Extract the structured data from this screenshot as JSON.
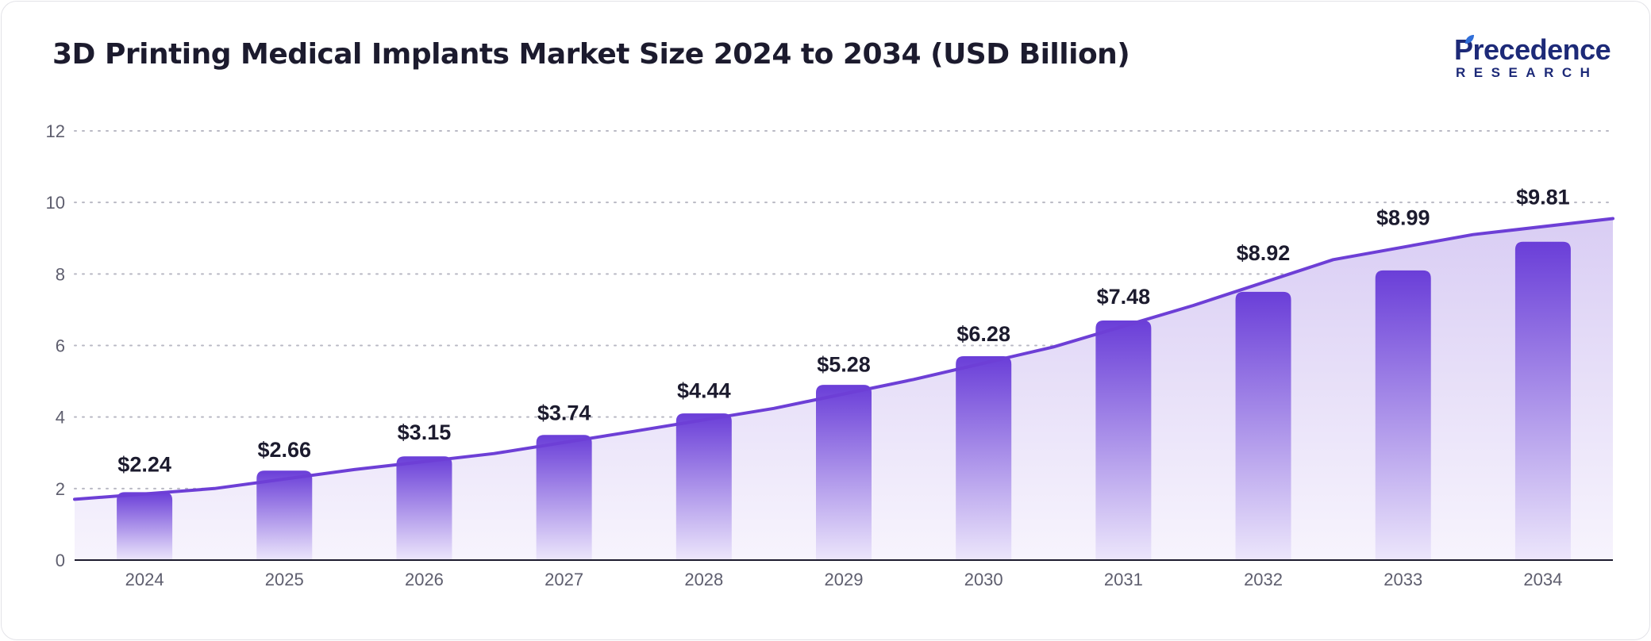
{
  "header": {
    "title": "3D Printing Medical Implants Market Size 2024 to 2034 (USD Billion)"
  },
  "logo": {
    "line1": "Precedence",
    "line2": "RESEARCH",
    "color": "#1d2a78",
    "accent": "#2f6ed8"
  },
  "chart_data": {
    "type": "bar",
    "categories": [
      "2024",
      "2025",
      "2026",
      "2027",
      "2028",
      "2029",
      "2030",
      "2031",
      "2032",
      "2033",
      "2034"
    ],
    "values": [
      2.24,
      2.66,
      3.15,
      3.74,
      4.44,
      5.28,
      6.28,
      7.48,
      8.92,
      8.99,
      9.81
    ],
    "labels": [
      "$2.24",
      "$2.66",
      "$3.15",
      "$3.74",
      "$4.44",
      "$5.28",
      "$6.28",
      "$7.48",
      "$8.92",
      "$8.99",
      "$9.81"
    ],
    "bar_heights": [
      1.9,
      2.5,
      2.9,
      3.5,
      4.1,
      4.9,
      5.7,
      6.7,
      7.5,
      8.1,
      8.9
    ],
    "trend_line": [
      1.7,
      2.0,
      2.53,
      2.98,
      3.6,
      4.24,
      5.05,
      5.96,
      7.12,
      8.4,
      9.1,
      9.55
    ],
    "title": "3D Printing Medical Implants Market Size 2024 to 2034 (USD Billion)",
    "xlabel": "",
    "ylabel": "",
    "ylim": [
      0,
      12
    ],
    "yticks": [
      0,
      2,
      4,
      6,
      8,
      10,
      12
    ],
    "grid": true,
    "legend": "none",
    "colors": {
      "bar_top": "#6a3ed8",
      "bar_bottom": "#ece6fb",
      "line": "#6d3fd6",
      "area_top": "#d9cdf4",
      "area_bottom": "#f7f4fd",
      "grid": "#b9b9c4",
      "axis": "#1c1b2e"
    }
  }
}
